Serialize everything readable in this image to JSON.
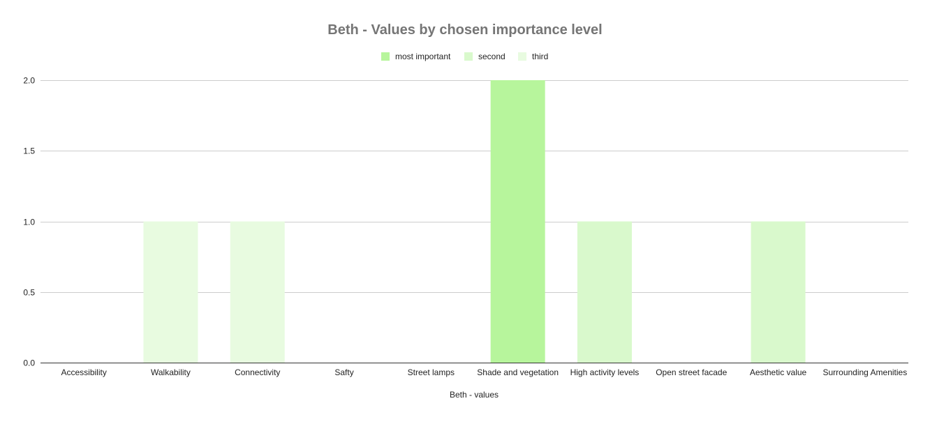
{
  "chart_data": {
    "type": "bar",
    "title": "Beth - Values by chosen importance level",
    "xlabel": "Beth - values",
    "ylabel": "",
    "ylim": [
      0,
      2
    ],
    "yticks": [
      "0.0",
      "0.5",
      "1.0",
      "1.5",
      "2.0"
    ],
    "ytick_values": [
      0,
      0.5,
      1,
      1.5,
      2
    ],
    "grid": true,
    "legend_position": "top",
    "categories": [
      "Accessibility",
      "Walkability",
      "Connectivity",
      "Safty",
      "Street lamps",
      "Shade and vegetation",
      "High activity levels",
      "Open street facade",
      "Aesthetic value",
      "Surrounding Amenities"
    ],
    "series": [
      {
        "name": "most important",
        "color": "#b7f59c",
        "values": [
          0,
          0,
          0,
          0,
          0,
          2,
          0,
          0,
          0,
          0
        ]
      },
      {
        "name": "second",
        "color": "#d9f9cc",
        "values": [
          0,
          0,
          0,
          0,
          0,
          0,
          1,
          0,
          1,
          0
        ]
      },
      {
        "name": "third",
        "color": "#e8fbe0",
        "values": [
          0,
          1,
          1,
          0,
          0,
          0,
          0,
          0,
          0,
          0
        ]
      }
    ]
  }
}
